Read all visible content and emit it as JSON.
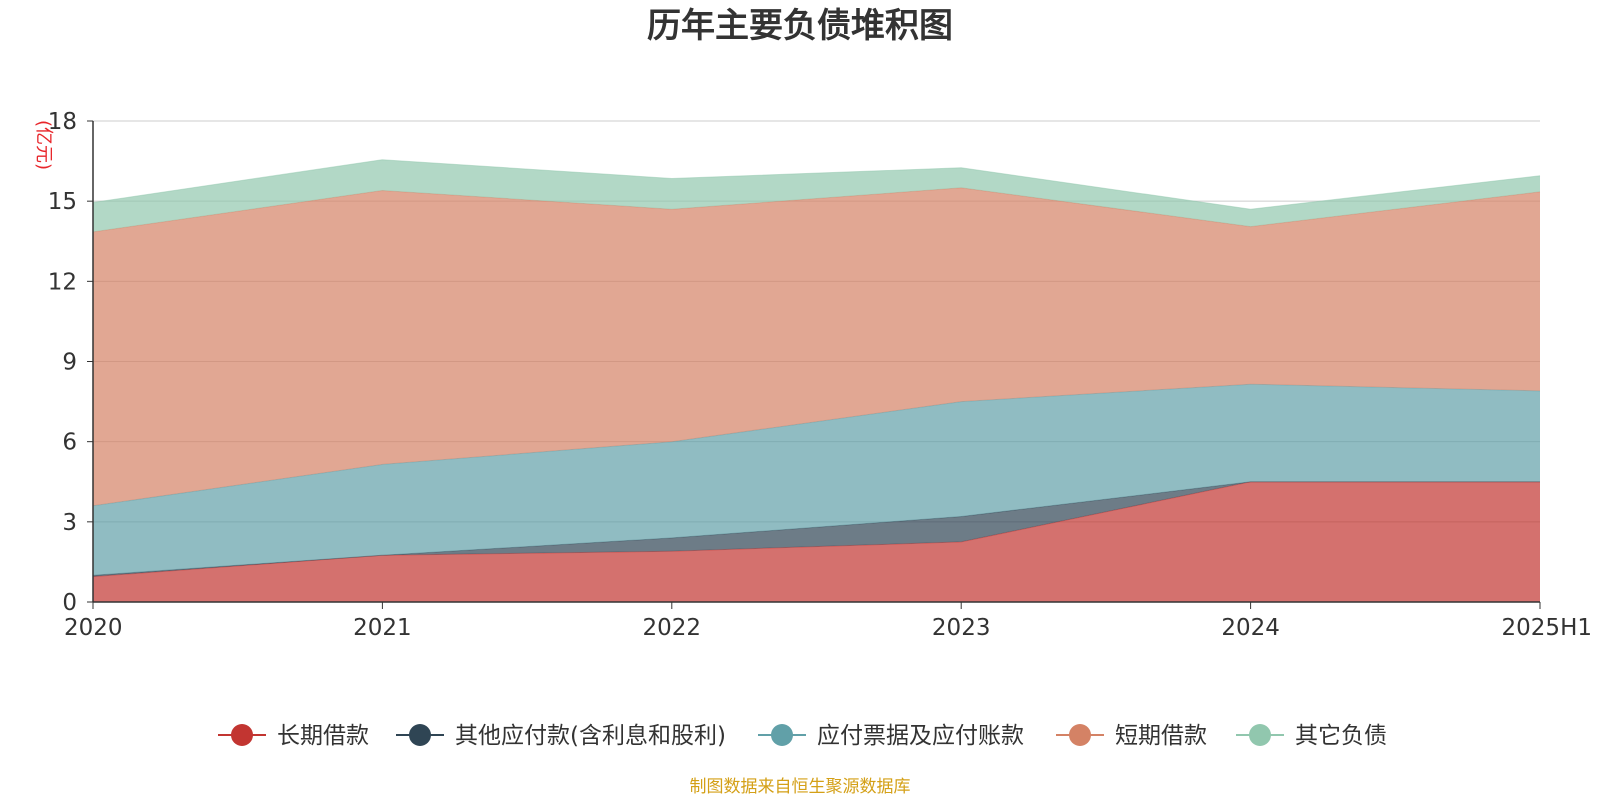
{
  "chart_data": {
    "type": "area",
    "stacked": true,
    "title": "历年主要负债堆积图",
    "unit_label": "(亿元)",
    "categories": [
      "2020",
      "2021",
      "2022",
      "2023",
      "2024",
      "2025H1"
    ],
    "ylim": [
      0,
      18
    ],
    "yticks": [
      0,
      3,
      6,
      9,
      12,
      15,
      18
    ],
    "ytick_labels": [
      "0",
      "3",
      "6",
      "9",
      "12",
      "15",
      "18"
    ],
    "grid": true,
    "legend_position": "bottom",
    "series": [
      {
        "name": "长期借款",
        "color": "#c23531",
        "values": [
          0.95,
          1.75,
          1.9,
          2.25,
          4.5,
          4.5
        ]
      },
      {
        "name": "其他应付款(含利息和股利)",
        "color": "#2f4554",
        "values": [
          0.05,
          0.0,
          0.5,
          0.95,
          0.0,
          0.0
        ]
      },
      {
        "name": "应付票据及应付账款",
        "color": "#61a0a8",
        "values": [
          2.6,
          3.4,
          3.6,
          4.3,
          3.65,
          3.4
        ]
      },
      {
        "name": "短期借款",
        "color": "#d48265",
        "values": [
          10.25,
          10.25,
          8.7,
          8.0,
          5.9,
          7.45
        ]
      },
      {
        "name": "其它负债",
        "color": "#91c7ae",
        "values": [
          1.1,
          1.15,
          1.15,
          0.75,
          0.65,
          0.6
        ]
      }
    ],
    "source": "制图数据来自恒生聚源数据库"
  },
  "colors": {
    "unit_label": "#e8262b",
    "source": "#d4a017",
    "grid": "#cccccc",
    "axis": "#333333"
  }
}
